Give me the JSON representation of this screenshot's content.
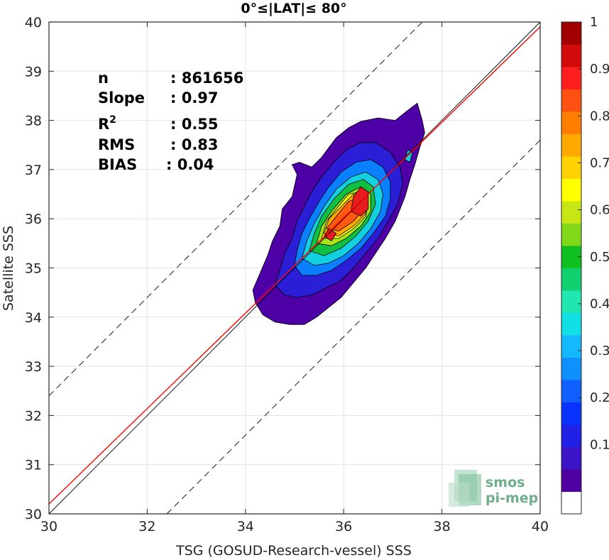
{
  "chart_data": {
    "type": "scatter",
    "subtype": "density-contour",
    "title": "0°≤|LAT|≤ 80°",
    "xlabel": "TSG (GOSUD-Research-vessel) SSS",
    "ylabel": "Satellite SSS",
    "xlim": [
      30,
      40
    ],
    "ylim": [
      30,
      40
    ],
    "xticks": [
      "30",
      "32",
      "34",
      "36",
      "38",
      "40"
    ],
    "yticks": [
      "30",
      "31",
      "32",
      "33",
      "34",
      "35",
      "36",
      "37",
      "38",
      "39",
      "40"
    ],
    "grid": true,
    "stats": [
      {
        "label": "n",
        "value": ": 861656"
      },
      {
        "label": "Slope",
        "value": ": 0.97"
      },
      {
        "label": "R",
        "sup": "2",
        "value": ": 0.55"
      },
      {
        "label": "RMS",
        "value": ": 0.83"
      },
      {
        "label": "BIAS",
        "value": ": 0.04"
      }
    ],
    "lines": [
      {
        "name": "1:1",
        "color": "#000000",
        "style": "solid",
        "slope": 1,
        "intercept": 0
      },
      {
        "name": "fit",
        "color": "#ff0000",
        "style": "solid",
        "slope": 0.97,
        "intercept": 1.1
      },
      {
        "name": "+2 offset",
        "color": "#000000",
        "style": "dashed",
        "slope": 1,
        "intercept": 2.4
      },
      {
        "name": "-2 offset",
        "color": "#000000",
        "style": "dashed",
        "slope": 1,
        "intercept": -2.4
      }
    ],
    "density_center": {
      "x": 36.0,
      "y": 36.0
    },
    "contour_levels": [
      {
        "level": 0.0,
        "color": "#4d00a6",
        "polygon": [
          [
            34.15,
            34.55
          ],
          [
            34.3,
            34.9
          ],
          [
            34.45,
            35.25
          ],
          [
            34.55,
            35.55
          ],
          [
            34.7,
            35.85
          ],
          [
            34.75,
            36.2
          ],
          [
            34.95,
            36.45
          ],
          [
            35.05,
            36.9
          ],
          [
            34.95,
            37.1
          ],
          [
            35.1,
            37.15
          ],
          [
            35.35,
            37.05
          ],
          [
            35.55,
            37.25
          ],
          [
            35.7,
            37.45
          ],
          [
            35.85,
            37.65
          ],
          [
            36.1,
            37.85
          ],
          [
            36.35,
            37.98
          ],
          [
            36.7,
            38.05
          ],
          [
            37.05,
            38.0
          ],
          [
            37.3,
            38.2
          ],
          [
            37.5,
            38.35
          ],
          [
            37.6,
            38.0
          ],
          [
            37.65,
            37.75
          ],
          [
            37.55,
            37.45
          ],
          [
            37.45,
            37.1
          ],
          [
            37.35,
            36.8
          ],
          [
            37.25,
            36.45
          ],
          [
            37.05,
            35.95
          ],
          [
            36.85,
            35.6
          ],
          [
            36.65,
            35.3
          ],
          [
            36.45,
            35.0
          ],
          [
            36.2,
            34.7
          ],
          [
            35.95,
            34.4
          ],
          [
            35.7,
            34.2
          ],
          [
            35.45,
            34.0
          ],
          [
            35.2,
            33.85
          ],
          [
            34.9,
            33.85
          ],
          [
            34.6,
            33.9
          ],
          [
            34.35,
            34.05
          ],
          [
            34.2,
            34.3
          ]
        ]
      },
      {
        "level": 0.1,
        "color": "#2a1fd6",
        "polygon": [
          [
            34.6,
            34.65
          ],
          [
            34.7,
            34.95
          ],
          [
            34.8,
            35.3
          ],
          [
            34.95,
            35.6
          ],
          [
            35.05,
            35.95
          ],
          [
            35.2,
            36.25
          ],
          [
            35.35,
            36.55
          ],
          [
            35.55,
            36.85
          ],
          [
            35.8,
            37.15
          ],
          [
            36.05,
            37.4
          ],
          [
            36.35,
            37.55
          ],
          [
            36.65,
            37.55
          ],
          [
            36.95,
            37.35
          ],
          [
            37.15,
            37.05
          ],
          [
            37.2,
            36.7
          ],
          [
            37.1,
            36.3
          ],
          [
            36.9,
            35.95
          ],
          [
            36.7,
            35.6
          ],
          [
            36.45,
            35.3
          ],
          [
            36.2,
            35.0
          ],
          [
            35.95,
            34.75
          ],
          [
            35.65,
            34.6
          ],
          [
            35.35,
            34.45
          ],
          [
            35.05,
            34.4
          ],
          [
            34.8,
            34.45
          ]
        ]
      },
      {
        "level": 0.25,
        "color": "#0a7fff",
        "polygon": [
          [
            35.0,
            35.05
          ],
          [
            35.05,
            35.35
          ],
          [
            35.15,
            35.7
          ],
          [
            35.3,
            36.0
          ],
          [
            35.5,
            36.35
          ],
          [
            35.7,
            36.65
          ],
          [
            35.95,
            36.95
          ],
          [
            36.25,
            37.15
          ],
          [
            36.55,
            37.2
          ],
          [
            36.8,
            37.05
          ],
          [
            36.95,
            36.75
          ],
          [
            36.95,
            36.4
          ],
          [
            36.85,
            36.05
          ],
          [
            36.6,
            35.7
          ],
          [
            36.35,
            35.4
          ],
          [
            36.05,
            35.15
          ],
          [
            35.75,
            34.95
          ],
          [
            35.45,
            34.85
          ],
          [
            35.15,
            34.85
          ]
        ]
      },
      {
        "level": 0.35,
        "color": "#12d0e0",
        "polygon": [
          [
            35.15,
            35.2
          ],
          [
            35.25,
            35.55
          ],
          [
            35.4,
            35.9
          ],
          [
            35.6,
            36.25
          ],
          [
            35.85,
            36.6
          ],
          [
            36.15,
            36.85
          ],
          [
            36.45,
            36.95
          ],
          [
            36.7,
            36.8
          ],
          [
            36.8,
            36.5
          ],
          [
            36.75,
            36.15
          ],
          [
            36.55,
            35.8
          ],
          [
            36.3,
            35.5
          ],
          [
            36.0,
            35.25
          ],
          [
            35.7,
            35.1
          ],
          [
            35.4,
            35.05
          ]
        ]
      },
      {
        "level": 0.5,
        "color": "#10c040",
        "polygon": [
          [
            35.3,
            35.35
          ],
          [
            35.4,
            35.7
          ],
          [
            35.55,
            36.05
          ],
          [
            35.8,
            36.4
          ],
          [
            36.1,
            36.7
          ],
          [
            36.4,
            36.8
          ],
          [
            36.6,
            36.65
          ],
          [
            36.65,
            36.3
          ],
          [
            36.5,
            35.95
          ],
          [
            36.25,
            35.65
          ],
          [
            35.95,
            35.4
          ],
          [
            35.6,
            35.25
          ]
        ]
      },
      {
        "level": 0.6,
        "color": "#a8e21a",
        "polygon": [
          [
            35.45,
            35.5
          ],
          [
            35.55,
            35.85
          ],
          [
            35.75,
            36.15
          ],
          [
            36.05,
            36.5
          ],
          [
            36.35,
            36.65
          ],
          [
            36.55,
            36.5
          ],
          [
            36.55,
            36.15
          ],
          [
            36.35,
            35.85
          ],
          [
            36.05,
            35.6
          ],
          [
            35.75,
            35.45
          ]
        ]
      },
      {
        "level": 0.65,
        "color": "#ffff00",
        "polygon": [
          [
            35.55,
            35.6
          ],
          [
            35.65,
            35.95
          ],
          [
            35.85,
            36.2
          ],
          [
            36.1,
            36.5
          ],
          [
            36.35,
            36.55
          ],
          [
            36.5,
            36.35
          ],
          [
            36.45,
            36.05
          ],
          [
            36.2,
            35.8
          ],
          [
            35.9,
            35.6
          ]
        ]
      },
      {
        "level": 0.7,
        "color": "#ffaa00",
        "polygon": [
          [
            35.6,
            35.7
          ],
          [
            35.7,
            36.0
          ],
          [
            35.95,
            36.25
          ],
          [
            36.2,
            36.5
          ],
          [
            36.45,
            36.45
          ],
          [
            36.45,
            36.1
          ],
          [
            36.2,
            35.85
          ],
          [
            35.9,
            35.65
          ]
        ]
      },
      {
        "level": 0.8,
        "color": "#ff5a10",
        "polygon": [
          [
            35.65,
            35.8
          ],
          [
            35.85,
            36.05
          ],
          [
            36.1,
            36.35
          ],
          [
            36.35,
            36.45
          ],
          [
            36.42,
            36.2
          ],
          [
            36.2,
            35.95
          ],
          [
            35.9,
            35.75
          ]
        ]
      },
      {
        "level": 0.9,
        "color": "#e61e1e",
        "polygon": [
          [
            36.15,
            36.15
          ],
          [
            36.2,
            36.45
          ],
          [
            36.35,
            36.65
          ],
          [
            36.5,
            36.55
          ],
          [
            36.5,
            36.2
          ],
          [
            36.35,
            36.05
          ]
        ]
      },
      {
        "level": 0.9,
        "color": "#e61e1e",
        "polygon": [
          [
            35.6,
            35.65
          ],
          [
            35.7,
            35.8
          ],
          [
            35.85,
            35.7
          ],
          [
            35.75,
            35.55
          ]
        ]
      }
    ],
    "small_contour": {
      "color": "#12d0e0",
      "polygon": [
        [
          37.25,
          37.2
        ],
        [
          37.3,
          37.4
        ],
        [
          37.4,
          37.35
        ],
        [
          37.35,
          37.15
        ]
      ]
    },
    "colorbar": {
      "colors": [
        "#ffffff",
        "#5000a0",
        "#3c14c8",
        "#2020e6",
        "#0a32ff",
        "#1060ff",
        "#1090ff",
        "#14b8ff",
        "#10e0e6",
        "#20e6b0",
        "#10d070",
        "#10c020",
        "#80d818",
        "#c8e614",
        "#ffff00",
        "#ffd200",
        "#ffa800",
        "#ff7d00",
        "#ff5014",
        "#ff1e1e",
        "#d20a0a",
        "#a00000"
      ],
      "ticks": [
        "0.1",
        "0.2",
        "0.3",
        "0.4",
        "0.5",
        "0.6",
        "0.7",
        "0.8",
        "0.9",
        "1"
      ]
    }
  },
  "logo": {
    "line1": "smos",
    "line2": "pi-mep"
  }
}
